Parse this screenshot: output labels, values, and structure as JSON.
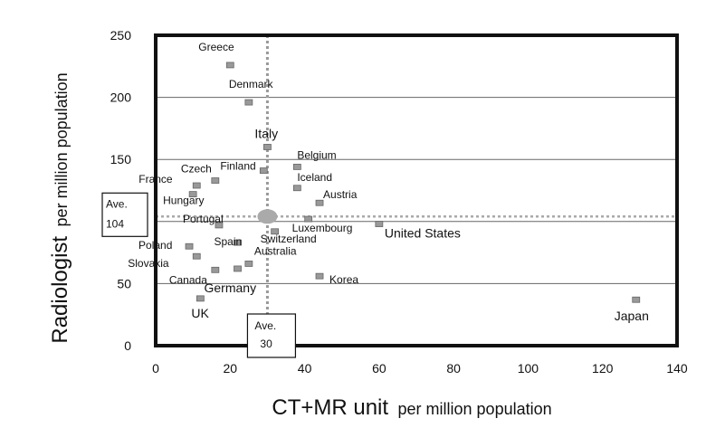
{
  "chart_data": {
    "type": "scatter",
    "xlabel_main": "CT+MR unit",
    "xlabel_sub": "per million population",
    "ylabel_main": "Radiologist",
    "ylabel_sub": "per million population",
    "xlim": [
      0,
      140
    ],
    "ylim": [
      0,
      250
    ],
    "x_ticks": [
      0,
      20,
      40,
      60,
      80,
      100,
      120,
      140
    ],
    "y_ticks": [
      0,
      50,
      100,
      150,
      200,
      250
    ],
    "gridlines_y": [
      50,
      100,
      150,
      200
    ],
    "average": {
      "x": 30,
      "y": 104,
      "x_label": "Ave.",
      "x_value": "30",
      "y_label": "Ave.",
      "y_value": "104"
    },
    "points": [
      {
        "name": "Greece",
        "x": 20,
        "y": 226
      },
      {
        "name": "Denmark",
        "x": 25,
        "y": 196
      },
      {
        "name": "Italy",
        "x": 30,
        "y": 160
      },
      {
        "name": "Belgium",
        "x": 38,
        "y": 144
      },
      {
        "name": "Finland",
        "x": 29,
        "y": 141
      },
      {
        "name": "Czech",
        "x": 16,
        "y": 133
      },
      {
        "name": "France",
        "x": 11,
        "y": 129
      },
      {
        "name": "Iceland",
        "x": 38,
        "y": 127
      },
      {
        "name": "Hungary",
        "x": 10,
        "y": 122
      },
      {
        "name": "Austria",
        "x": 44,
        "y": 115
      },
      {
        "name": "Portugal",
        "x": 17,
        "y": 97
      },
      {
        "name": "Luxembourg",
        "x": 41,
        "y": 102
      },
      {
        "name": "United States",
        "x": 60,
        "y": 98
      },
      {
        "name": "Switzerland",
        "x": 32,
        "y": 92
      },
      {
        "name": "Spain",
        "x": 22,
        "y": 83
      },
      {
        "name": "Poland",
        "x": 9,
        "y": 80
      },
      {
        "name": "Slovakia",
        "x": 11,
        "y": 72
      },
      {
        "name": "Australia",
        "x": 25,
        "y": 66
      },
      {
        "name": "Germany",
        "x": 22,
        "y": 62
      },
      {
        "name": "Canada",
        "x": 16,
        "y": 61
      },
      {
        "name": "Korea",
        "x": 44,
        "y": 56
      },
      {
        "name": "UK",
        "x": 12,
        "y": 38
      },
      {
        "name": "Japan",
        "x": 129,
        "y": 37
      }
    ]
  }
}
